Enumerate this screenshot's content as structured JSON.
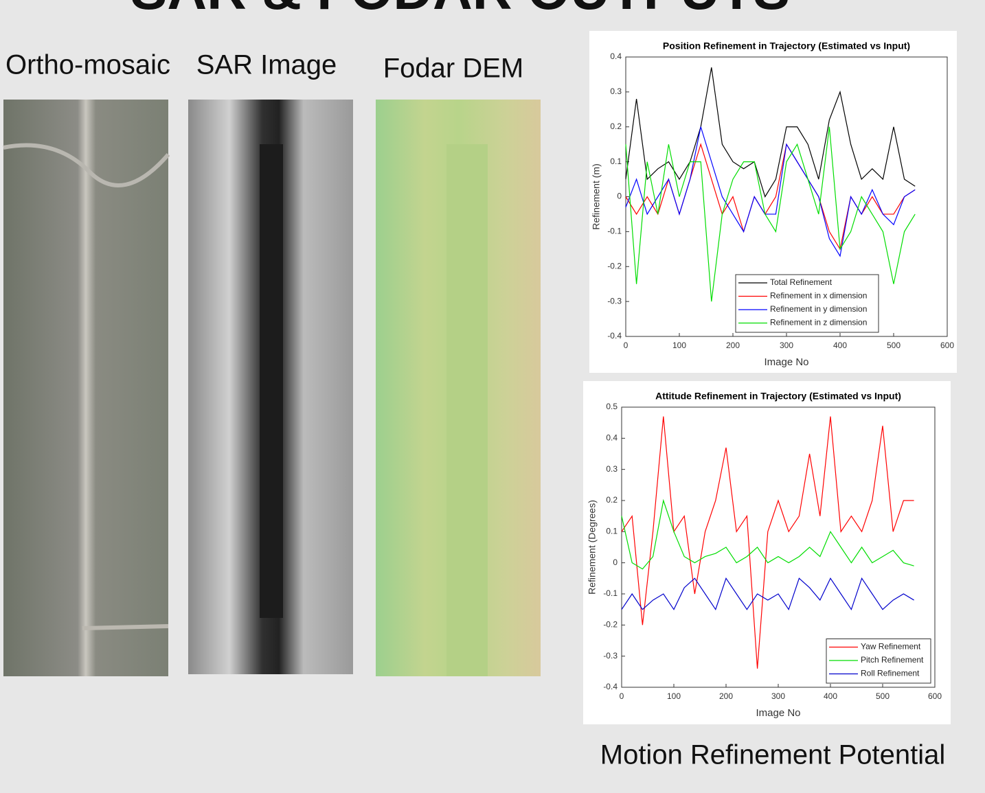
{
  "slide": {
    "title": "SAR & FODAR OUTPUTS",
    "captions": [
      "Ortho-mosaic",
      "SAR Image",
      "Fodar DEM"
    ],
    "footer": "Motion Refinement Potential"
  },
  "chart_data": [
    {
      "type": "line",
      "title": "Position Refinement in Trajectory (Estimated vs Input)",
      "x_label": "Image No",
      "y_label": "Refinement (m)",
      "x": [
        0,
        20,
        40,
        60,
        80,
        100,
        120,
        140,
        160,
        180,
        200,
        220,
        240,
        260,
        280,
        300,
        320,
        340,
        360,
        380,
        400,
        420,
        440,
        460,
        480,
        500,
        520,
        540
      ],
      "series": [
        {
          "name": "Total Refinement",
          "color": "#000000",
          "values": [
            0.05,
            0.28,
            0.05,
            0.08,
            0.1,
            0.05,
            0.1,
            0.2,
            0.37,
            0.15,
            0.1,
            0.08,
            0.1,
            0,
            0.05,
            0.2,
            0.2,
            0.15,
            0.05,
            0.22,
            0.3,
            0.15,
            0.05,
            0.08,
            0.05,
            0.2,
            0.05,
            0.03
          ]
        },
        {
          "name": "Refinement in x dimension",
          "color": "#ff0000",
          "values": [
            0,
            -0.05,
            0,
            -0.05,
            0.05,
            -0.05,
            0.05,
            0.15,
            0.05,
            -0.05,
            0,
            -0.1,
            0,
            -0.05,
            0,
            0.15,
            0.1,
            0.05,
            0,
            -0.1,
            -0.15,
            0,
            -0.05,
            0,
            -0.05,
            -0.05,
            0,
            0.02
          ]
        },
        {
          "name": "Refinement in y dimension",
          "color": "#0000ff",
          "values": [
            -0.03,
            0.05,
            -0.05,
            0,
            0.05,
            -0.05,
            0.05,
            0.2,
            0.1,
            0,
            -0.05,
            -0.1,
            0,
            -0.05,
            -0.05,
            0.15,
            0.1,
            0.05,
            0,
            -0.12,
            -0.17,
            0,
            -0.05,
            0.02,
            -0.05,
            -0.08,
            0,
            0.02
          ]
        },
        {
          "name": "Refinement in z dimension",
          "color": "#00dd00",
          "values": [
            0.15,
            -0.25,
            0.1,
            -0.05,
            0.15,
            0,
            0.1,
            0.1,
            -0.3,
            -0.05,
            0.05,
            0.1,
            0.1,
            -0.05,
            -0.1,
            0.1,
            0.15,
            0.05,
            -0.05,
            0.2,
            -0.15,
            -0.1,
            0,
            -0.05,
            -0.1,
            -0.25,
            -0.1,
            -0.05
          ]
        }
      ],
      "xlim": [
        0,
        600
      ],
      "xticks": [
        0,
        100,
        200,
        300,
        400,
        500,
        600
      ],
      "ylim": [
        -0.4,
        0.4
      ],
      "yticks": [
        -0.4,
        -0.3,
        -0.2,
        -0.1,
        0,
        0.1,
        0.2,
        0.3,
        0.4
      ],
      "legend": "lower center"
    },
    {
      "type": "line",
      "title": "Attitude Refinement in Trajectory (Estimated vs Input)",
      "x_label": "Image No",
      "y_label": "Refinement (Degrees)",
      "x": [
        0,
        20,
        40,
        60,
        80,
        100,
        120,
        140,
        160,
        180,
        200,
        220,
        240,
        260,
        280,
        300,
        320,
        340,
        360,
        380,
        400,
        420,
        440,
        460,
        480,
        500,
        520,
        540,
        560
      ],
      "series": [
        {
          "name": "Yaw Refinement",
          "color": "#ff0000",
          "values": [
            0.1,
            0.15,
            -0.2,
            0.1,
            0.47,
            0.1,
            0.15,
            -0.1,
            0.1,
            0.2,
            0.37,
            0.1,
            0.15,
            -0.34,
            0.1,
            0.2,
            0.1,
            0.15,
            0.35,
            0.15,
            0.47,
            0.1,
            0.15,
            0.1,
            0.2,
            0.44,
            0.1,
            0.2,
            0.2
          ]
        },
        {
          "name": "Pitch Refinement",
          "color": "#00dd00",
          "values": [
            0.15,
            0,
            -0.02,
            0.02,
            0.2,
            0.1,
            0.02,
            0,
            0.02,
            0.03,
            0.05,
            0,
            0.02,
            0.05,
            0,
            0.02,
            0,
            0.02,
            0.05,
            0.02,
            0.1,
            0.05,
            0,
            0.05,
            0,
            0.02,
            0.04,
            0,
            -0.01
          ]
        },
        {
          "name": "Roll Refinement",
          "color": "#0000cc",
          "values": [
            -0.15,
            -0.1,
            -0.15,
            -0.12,
            -0.1,
            -0.15,
            -0.08,
            -0.05,
            -0.1,
            -0.15,
            -0.05,
            -0.1,
            -0.15,
            -0.1,
            -0.12,
            -0.1,
            -0.15,
            -0.05,
            -0.08,
            -0.12,
            -0.05,
            -0.1,
            -0.15,
            -0.05,
            -0.1,
            -0.15,
            -0.12,
            -0.1,
            -0.12
          ]
        }
      ],
      "xlim": [
        0,
        600
      ],
      "xticks": [
        0,
        100,
        200,
        300,
        400,
        500,
        600
      ],
      "ylim": [
        -0.4,
        0.5
      ],
      "yticks": [
        -0.4,
        -0.3,
        -0.2,
        -0.1,
        0,
        0.1,
        0.2,
        0.3,
        0.4,
        0.5
      ],
      "legend": "lower right"
    }
  ]
}
